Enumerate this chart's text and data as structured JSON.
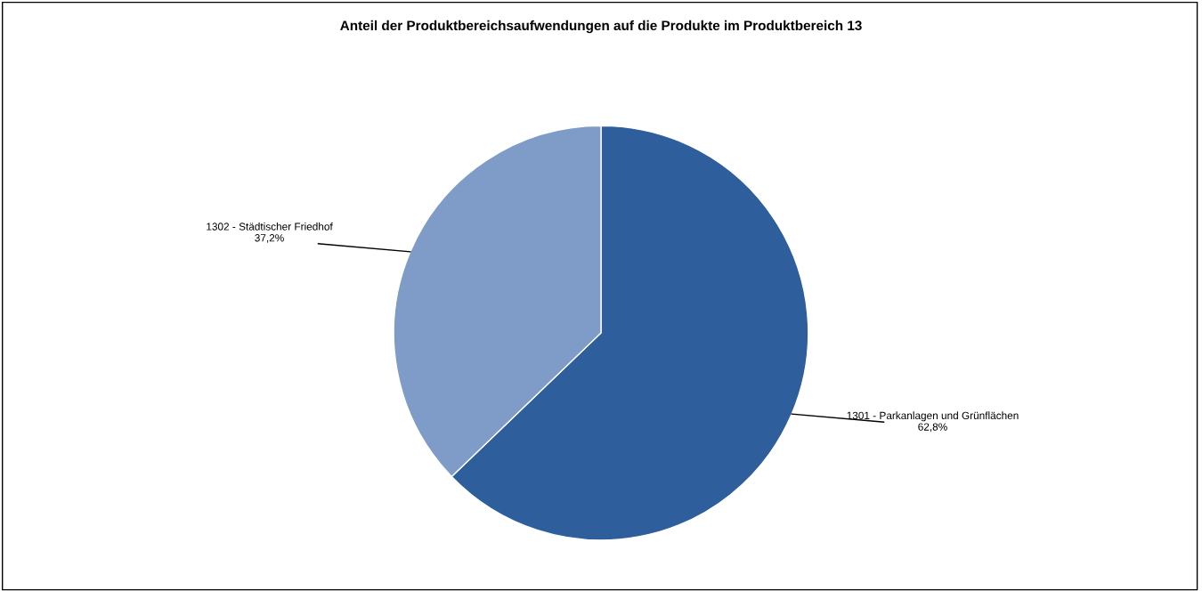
{
  "chart_data": {
    "type": "pie",
    "title": "Anteil der Produktbereichsaufwendungen auf die Produkte im Produktbereich 13",
    "categories": [
      "1301 - Parkanlagen und Grünflächen",
      "1302 - Städtischer Friedhof"
    ],
    "values": [
      62.8,
      37.2
    ],
    "value_labels": [
      "62,8%",
      "37,2%"
    ],
    "colors": [
      "#2e5e9c",
      "#7f9bc8"
    ],
    "legend": false
  }
}
